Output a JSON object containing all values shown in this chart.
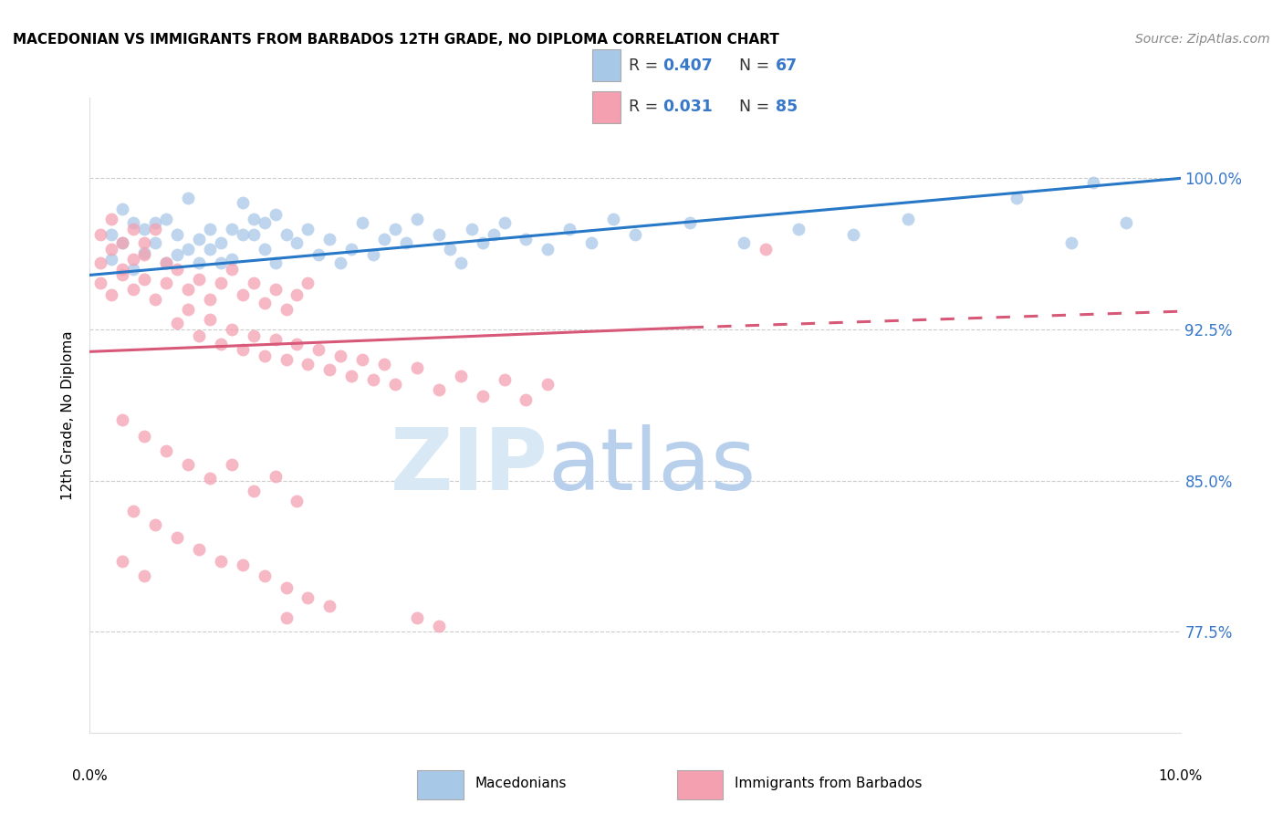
{
  "title": "MACEDONIAN VS IMMIGRANTS FROM BARBADOS 12TH GRADE, NO DIPLOMA CORRELATION CHART",
  "source": "Source: ZipAtlas.com",
  "ylabel": "12th Grade, No Diploma",
  "ytick_labels": [
    "77.5%",
    "85.0%",
    "92.5%",
    "100.0%"
  ],
  "ytick_values": [
    0.775,
    0.85,
    0.925,
    1.0
  ],
  "xlim": [
    0.0,
    0.1
  ],
  "ylim": [
    0.725,
    1.04
  ],
  "macedonian_color": "#a8c8e8",
  "barbados_color": "#f4a0b0",
  "macedonian_line_color": "#2878c8",
  "barbados_line_color": "#d85878",
  "r_macedonian": "0.407",
  "r_barbados": "0.031",
  "n_macedonian": "67",
  "n_barbados": "85",
  "mac_line_x0": 0.0,
  "mac_line_y0": 0.952,
  "mac_line_x1": 0.1,
  "mac_line_y1": 1.0,
  "bar_line_x0": 0.0,
  "bar_line_y0": 0.914,
  "bar_line_x1": 0.055,
  "bar_line_y1": 0.926,
  "bar_line_dash_x0": 0.055,
  "bar_line_dash_y0": 0.926,
  "bar_line_dash_x1": 0.1,
  "bar_line_dash_y1": 0.934,
  "macedonian_points": [
    [
      0.002,
      0.972
    ],
    [
      0.003,
      0.985
    ],
    [
      0.004,
      0.978
    ],
    [
      0.005,
      0.975
    ],
    [
      0.006,
      0.968
    ],
    [
      0.007,
      0.98
    ],
    [
      0.008,
      0.962
    ],
    [
      0.009,
      0.99
    ],
    [
      0.01,
      0.97
    ],
    [
      0.011,
      0.965
    ],
    [
      0.012,
      0.958
    ],
    [
      0.013,
      0.975
    ],
    [
      0.014,
      0.988
    ],
    [
      0.015,
      0.972
    ],
    [
      0.016,
      0.978
    ],
    [
      0.017,
      0.982
    ],
    [
      0.002,
      0.96
    ],
    [
      0.003,
      0.968
    ],
    [
      0.004,
      0.955
    ],
    [
      0.005,
      0.963
    ],
    [
      0.006,
      0.978
    ],
    [
      0.007,
      0.958
    ],
    [
      0.008,
      0.972
    ],
    [
      0.009,
      0.965
    ],
    [
      0.01,
      0.958
    ],
    [
      0.011,
      0.975
    ],
    [
      0.012,
      0.968
    ],
    [
      0.013,
      0.96
    ],
    [
      0.014,
      0.972
    ],
    [
      0.015,
      0.98
    ],
    [
      0.016,
      0.965
    ],
    [
      0.017,
      0.958
    ],
    [
      0.018,
      0.972
    ],
    [
      0.019,
      0.968
    ],
    [
      0.02,
      0.975
    ],
    [
      0.021,
      0.962
    ],
    [
      0.022,
      0.97
    ],
    [
      0.023,
      0.958
    ],
    [
      0.024,
      0.965
    ],
    [
      0.025,
      0.978
    ],
    [
      0.026,
      0.962
    ],
    [
      0.027,
      0.97
    ],
    [
      0.028,
      0.975
    ],
    [
      0.029,
      0.968
    ],
    [
      0.03,
      0.98
    ],
    [
      0.032,
      0.972
    ],
    [
      0.033,
      0.965
    ],
    [
      0.034,
      0.958
    ],
    [
      0.035,
      0.975
    ],
    [
      0.036,
      0.968
    ],
    [
      0.037,
      0.972
    ],
    [
      0.038,
      0.978
    ],
    [
      0.04,
      0.97
    ],
    [
      0.042,
      0.965
    ],
    [
      0.044,
      0.975
    ],
    [
      0.046,
      0.968
    ],
    [
      0.048,
      0.98
    ],
    [
      0.05,
      0.972
    ],
    [
      0.055,
      0.978
    ],
    [
      0.06,
      0.968
    ],
    [
      0.065,
      0.975
    ],
    [
      0.07,
      0.972
    ],
    [
      0.075,
      0.98
    ],
    [
      0.085,
      0.99
    ],
    [
      0.09,
      0.968
    ],
    [
      0.092,
      0.998
    ],
    [
      0.095,
      0.978
    ]
  ],
  "barbados_points": [
    [
      0.001,
      0.972
    ],
    [
      0.002,
      0.98
    ],
    [
      0.003,
      0.968
    ],
    [
      0.004,
      0.975
    ],
    [
      0.005,
      0.962
    ],
    [
      0.001,
      0.958
    ],
    [
      0.002,
      0.965
    ],
    [
      0.003,
      0.952
    ],
    [
      0.004,
      0.96
    ],
    [
      0.005,
      0.968
    ],
    [
      0.006,
      0.975
    ],
    [
      0.007,
      0.958
    ],
    [
      0.001,
      0.948
    ],
    [
      0.002,
      0.942
    ],
    [
      0.003,
      0.955
    ],
    [
      0.004,
      0.945
    ],
    [
      0.005,
      0.95
    ],
    [
      0.006,
      0.94
    ],
    [
      0.007,
      0.948
    ],
    [
      0.008,
      0.955
    ],
    [
      0.009,
      0.945
    ],
    [
      0.01,
      0.95
    ],
    [
      0.011,
      0.94
    ],
    [
      0.012,
      0.948
    ],
    [
      0.013,
      0.955
    ],
    [
      0.014,
      0.942
    ],
    [
      0.015,
      0.948
    ],
    [
      0.016,
      0.938
    ],
    [
      0.017,
      0.945
    ],
    [
      0.018,
      0.935
    ],
    [
      0.019,
      0.942
    ],
    [
      0.02,
      0.948
    ],
    [
      0.008,
      0.928
    ],
    [
      0.009,
      0.935
    ],
    [
      0.01,
      0.922
    ],
    [
      0.011,
      0.93
    ],
    [
      0.012,
      0.918
    ],
    [
      0.013,
      0.925
    ],
    [
      0.014,
      0.915
    ],
    [
      0.015,
      0.922
    ],
    [
      0.016,
      0.912
    ],
    [
      0.017,
      0.92
    ],
    [
      0.018,
      0.91
    ],
    [
      0.019,
      0.918
    ],
    [
      0.02,
      0.908
    ],
    [
      0.021,
      0.915
    ],
    [
      0.022,
      0.905
    ],
    [
      0.023,
      0.912
    ],
    [
      0.024,
      0.902
    ],
    [
      0.025,
      0.91
    ],
    [
      0.026,
      0.9
    ],
    [
      0.027,
      0.908
    ],
    [
      0.028,
      0.898
    ],
    [
      0.03,
      0.906
    ],
    [
      0.032,
      0.895
    ],
    [
      0.034,
      0.902
    ],
    [
      0.036,
      0.892
    ],
    [
      0.038,
      0.9
    ],
    [
      0.04,
      0.89
    ],
    [
      0.042,
      0.898
    ],
    [
      0.003,
      0.88
    ],
    [
      0.005,
      0.872
    ],
    [
      0.007,
      0.865
    ],
    [
      0.009,
      0.858
    ],
    [
      0.011,
      0.851
    ],
    [
      0.013,
      0.858
    ],
    [
      0.015,
      0.845
    ],
    [
      0.017,
      0.852
    ],
    [
      0.019,
      0.84
    ],
    [
      0.004,
      0.835
    ],
    [
      0.006,
      0.828
    ],
    [
      0.008,
      0.822
    ],
    [
      0.01,
      0.816
    ],
    [
      0.012,
      0.81
    ],
    [
      0.003,
      0.81
    ],
    [
      0.005,
      0.803
    ],
    [
      0.014,
      0.808
    ],
    [
      0.016,
      0.803
    ],
    [
      0.018,
      0.797
    ],
    [
      0.02,
      0.792
    ],
    [
      0.022,
      0.788
    ],
    [
      0.03,
      0.782
    ],
    [
      0.032,
      0.778
    ],
    [
      0.062,
      0.965
    ],
    [
      0.018,
      0.782
    ]
  ]
}
